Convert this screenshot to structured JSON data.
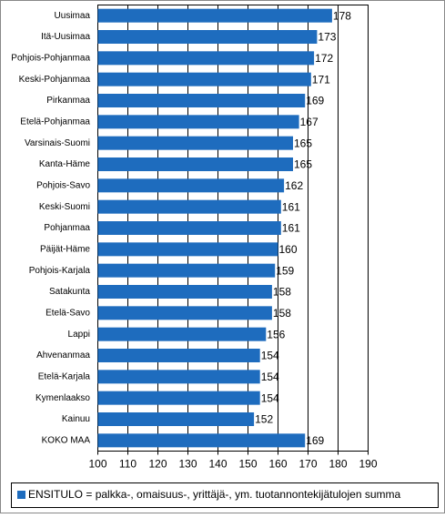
{
  "chart_data": {
    "type": "bar",
    "orientation": "horizontal",
    "categories": [
      "Uusimaa",
      "Itä-Uusimaa",
      "Pohjois-Pohjanmaa",
      "Keski-Pohjanmaa",
      "Pirkanmaa",
      "Etelä-Pohjanmaa",
      "Varsinais-Suomi",
      "Kanta-Häme",
      "Pohjois-Savo",
      "Keski-Suomi",
      "Pohjanmaa",
      "Päijät-Häme",
      "Pohjois-Karjala",
      "Satakunta",
      "Etelä-Savo",
      "Lappi",
      "Ahvenanmaa",
      "Etelä-Karjala",
      "Kymenlaakso",
      "Kainuu",
      "KOKO MAA"
    ],
    "series": [
      {
        "name": "ENSITULO = palkka-, omaisuus-, yrittäjä-, ym. tuotannontekijätulojen summa",
        "color": "#1e6cbe",
        "values": [
          178,
          173,
          172,
          171,
          169,
          167,
          165,
          165,
          162,
          161,
          161,
          160,
          159,
          158,
          158,
          156,
          154,
          154,
          154,
          152,
          169
        ]
      }
    ],
    "xlim": [
      100,
      190
    ],
    "xticks": [
      100,
      110,
      120,
      130,
      140,
      150,
      160,
      170,
      180,
      190
    ],
    "grid": true,
    "legend": "bottom"
  }
}
